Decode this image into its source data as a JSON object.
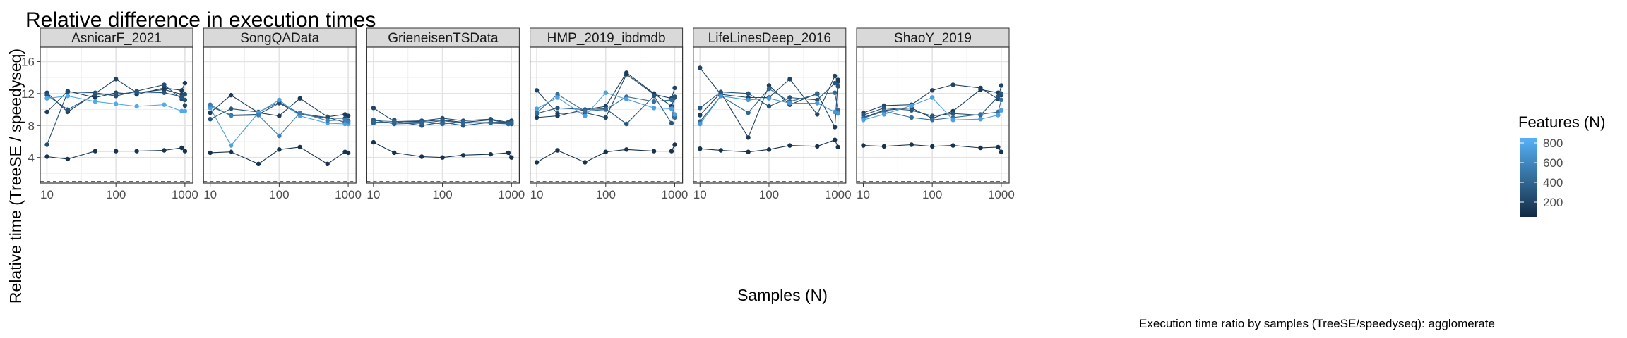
{
  "chart_data": {
    "type": "line",
    "title": "Relative difference in execution times",
    "xlabel": "Samples (N)",
    "ylabel": "Relative time (TreeSE / speedyseq)",
    "caption": "Execution time ratio by samples (TreeSE/speedyseq):  agglomerate",
    "x_scale": "log10",
    "xlim": [
      8,
      1300
    ],
    "ylim": [
      0.8,
      17.8
    ],
    "x_ticks": [
      10,
      100,
      1000
    ],
    "x_tick_labels": [
      "10",
      "100",
      "1000"
    ],
    "y_ticks": [
      4,
      8,
      12,
      16
    ],
    "y_tick_labels": [
      "4",
      "8",
      "12",
      "16"
    ],
    "reference_line": 1,
    "grid": true,
    "legend": {
      "title": "Features (N)",
      "placement": "right",
      "range": [
        50,
        850
      ],
      "ticks": [
        200,
        400,
        600,
        800
      ],
      "tick_labels": [
        "200",
        "400",
        "600",
        "800"
      ],
      "color_low": "#132b43",
      "color_high": "#56b1f7"
    },
    "panels": [
      {
        "name": "AsnicarF_2021",
        "series": [
          {
            "features": 100,
            "x": [
              10,
              20,
              50,
              100,
              200,
              500,
              900,
              1000
            ],
            "y": [
              4.1,
              3.8,
              4.8,
              4.8,
              4.8,
              4.9,
              5.2,
              4.8
            ]
          },
          {
            "features": 200,
            "x": [
              10,
              20,
              50,
              100,
              200,
              500,
              900,
              1000
            ],
            "y": [
              12.1,
              9.7,
              12.0,
              13.8,
              12.1,
              12.5,
              11.9,
              10.5
            ]
          },
          {
            "features": 150,
            "x": [
              10,
              20,
              50,
              100,
              200,
              500,
              900,
              1000
            ],
            "y": [
              9.7,
              12.3,
              11.5,
              12.1,
              11.9,
              12.7,
              12.4,
              13.3
            ]
          },
          {
            "features": 250,
            "x": [
              10,
              20,
              50,
              100,
              200,
              500,
              900,
              1000
            ],
            "y": [
              5.6,
              12.2,
              12.1,
              11.7,
              12.3,
              13.1,
              11.3,
              11.9
            ]
          },
          {
            "features": 300,
            "x": [
              10,
              20,
              50,
              100,
              200,
              500,
              900,
              1000
            ],
            "y": [
              11.8,
              10.0,
              11.9,
              11.9,
              12.2,
              12.1,
              11.6,
              11.2
            ]
          },
          {
            "features": 800,
            "x": [
              10,
              20,
              50,
              100,
              200,
              500,
              900,
              1000
            ],
            "y": [
              11.4,
              11.7,
              11.0,
              10.7,
              10.4,
              10.6,
              9.8,
              9.8
            ]
          }
        ]
      },
      {
        "name": "SongQAData",
        "series": [
          {
            "features": 100,
            "x": [
              10,
              20,
              50,
              100,
              200,
              500,
              900,
              1000
            ],
            "y": [
              4.6,
              4.7,
              3.2,
              5.0,
              5.3,
              3.2,
              4.7,
              4.6
            ]
          },
          {
            "features": 150,
            "x": [
              10,
              20,
              50,
              100,
              200,
              500,
              900,
              1000
            ],
            "y": [
              9.6,
              11.8,
              9.6,
              9.2,
              11.4,
              9.1,
              9.4,
              9.2
            ]
          },
          {
            "features": 300,
            "x": [
              10,
              20,
              50,
              100,
              200,
              500,
              900,
              1000
            ],
            "y": [
              8.8,
              10.1,
              9.7,
              10.9,
              9.5,
              9.0,
              8.4,
              8.6
            ]
          },
          {
            "features": 250,
            "x": [
              10,
              20,
              50,
              100,
              200,
              500,
              900,
              1000
            ],
            "y": [
              10.4,
              9.3,
              9.4,
              10.8,
              9.4,
              8.9,
              8.9,
              8.3
            ]
          },
          {
            "features": 750,
            "x": [
              10,
              20,
              50,
              100,
              200,
              500,
              900,
              1000
            ],
            "y": [
              10.2,
              5.5,
              9.6,
              11.2,
              9.2,
              8.3,
              8.2,
              8.2
            ]
          },
          {
            "features": 550,
            "x": [
              10,
              20,
              50,
              100,
              200,
              500,
              900,
              1000
            ],
            "y": [
              10.6,
              9.2,
              9.3,
              6.7,
              9.6,
              8.6,
              8.7,
              8.5
            ]
          }
        ]
      },
      {
        "name": "GrieneisenTSData",
        "series": [
          {
            "features": 100,
            "x": [
              10,
              20,
              50,
              100,
              200,
              500,
              900,
              1000
            ],
            "y": [
              5.9,
              4.6,
              4.1,
              4.0,
              4.3,
              4.4,
              4.6,
              4.0
            ]
          },
          {
            "features": 200,
            "x": [
              10,
              20,
              50,
              100,
              200,
              500,
              900,
              1000
            ],
            "y": [
              10.2,
              8.5,
              8.5,
              8.7,
              8.4,
              8.7,
              8.3,
              8.6
            ]
          },
          {
            "features": 250,
            "x": [
              10,
              20,
              50,
              100,
              200,
              500,
              900,
              1000
            ],
            "y": [
              8.6,
              8.7,
              8.6,
              8.9,
              8.6,
              8.8,
              8.4,
              8.3
            ]
          },
          {
            "features": 300,
            "x": [
              10,
              20,
              50,
              100,
              200,
              500,
              900,
              1000
            ],
            "y": [
              8.3,
              8.5,
              8.0,
              8.4,
              8.0,
              8.4,
              8.4,
              8.2
            ]
          },
          {
            "features": 350,
            "x": [
              10,
              20,
              50,
              100,
              200,
              500,
              900,
              1000
            ],
            "y": [
              8.7,
              8.2,
              8.3,
              8.6,
              8.3,
              8.4,
              8.2,
              8.4
            ]
          },
          {
            "features": 400,
            "x": [
              10,
              20,
              50,
              100,
              200,
              500,
              900,
              1000
            ],
            "y": [
              8.4,
              8.5,
              8.4,
              8.2,
              8.4,
              8.3,
              8.2,
              8.3
            ]
          }
        ]
      },
      {
        "name": "HMP_2019_ibdmdb",
        "series": [
          {
            "features": 100,
            "x": [
              10,
              20,
              50,
              100,
              200,
              500,
              900,
              1000
            ],
            "y": [
              3.4,
              4.9,
              3.4,
              4.7,
              5.0,
              4.8,
              4.8,
              5.6
            ]
          },
          {
            "features": 200,
            "x": [
              10,
              20,
              50,
              100,
              200,
              500,
              900,
              1000
            ],
            "y": [
              12.4,
              9.5,
              9.6,
              9.0,
              14.4,
              11.9,
              11.4,
              12.7
            ]
          },
          {
            "features": 150,
            "x": [
              10,
              20,
              50,
              100,
              200,
              500,
              900,
              1000
            ],
            "y": [
              9.0,
              9.2,
              10.0,
              10.4,
              14.6,
              12.0,
              10.4,
              11.5
            ]
          },
          {
            "features": 300,
            "x": [
              10,
              20,
              50,
              100,
              200,
              500,
              900,
              1000
            ],
            "y": [
              9.5,
              10.2,
              10.0,
              10.1,
              8.2,
              11.7,
              8.3,
              11.6
            ]
          },
          {
            "features": 450,
            "x": [
              10,
              20,
              50,
              100,
              200,
              500,
              900,
              1000
            ],
            "y": [
              9.6,
              11.9,
              9.8,
              10.0,
              11.6,
              11.0,
              11.2,
              9.0
            ]
          },
          {
            "features": 750,
            "x": [
              10,
              20,
              50,
              100,
              200,
              500,
              900,
              1000
            ],
            "y": [
              10.1,
              11.5,
              9.2,
              12.1,
              11.3,
              10.2,
              10.1,
              9.4
            ]
          }
        ]
      },
      {
        "name": "LifeLinesDeep_2016",
        "series": [
          {
            "features": 100,
            "x": [
              10,
              20,
              50,
              100,
              200,
              500,
              900,
              1000
            ],
            "y": [
              5.1,
              4.9,
              4.7,
              5.0,
              5.5,
              5.4,
              6.2,
              5.3
            ]
          },
          {
            "features": 200,
            "x": [
              10,
              20,
              50,
              100,
              200,
              500,
              900,
              1000
            ],
            "y": [
              15.2,
              11.9,
              11.5,
              11.5,
              13.8,
              9.4,
              14.2,
              13.5
            ]
          },
          {
            "features": 150,
            "x": [
              10,
              20,
              50,
              100,
              200,
              500,
              900,
              1000
            ],
            "y": [
              9.3,
              12.1,
              6.5,
              13.0,
              10.6,
              12.0,
              7.8,
              13.7
            ]
          },
          {
            "features": 300,
            "x": [
              10,
              20,
              50,
              100,
              200,
              500,
              900,
              1000
            ],
            "y": [
              10.2,
              12.2,
              12.0,
              10.4,
              11.5,
              11.2,
              13.3,
              12.9
            ]
          },
          {
            "features": 400,
            "x": [
              10,
              20,
              50,
              100,
              200,
              500,
              900,
              1000
            ],
            "y": [
              8.5,
              11.7,
              9.6,
              12.6,
              11.0,
              11.9,
              12.1,
              9.9
            ]
          },
          {
            "features": 700,
            "x": [
              10,
              20,
              50,
              100,
              200,
              500,
              900,
              1000
            ],
            "y": [
              8.2,
              11.7,
              11.2,
              11.4,
              10.8,
              10.8,
              9.7,
              9.5
            ]
          }
        ]
      },
      {
        "name": "ShaoY_2019",
        "series": [
          {
            "features": 100,
            "x": [
              10,
              20,
              50,
              100,
              200,
              500,
              900,
              1000
            ],
            "y": [
              5.5,
              5.4,
              5.6,
              5.4,
              5.5,
              5.2,
              5.3,
              4.7
            ]
          },
          {
            "features": 200,
            "x": [
              10,
              20,
              50,
              100,
              200,
              500,
              900,
              1000
            ],
            "y": [
              9.6,
              10.5,
              10.6,
              12.4,
              13.1,
              12.7,
              11.3,
              13.0
            ]
          },
          {
            "features": 150,
            "x": [
              10,
              20,
              50,
              100,
              200,
              500,
              900,
              1000
            ],
            "y": [
              9.0,
              9.9,
              10.2,
              8.9,
              9.8,
              12.5,
              12.1,
              11.8
            ]
          },
          {
            "features": 300,
            "x": [
              10,
              20,
              50,
              100,
              200,
              500,
              900,
              1000
            ],
            "y": [
              9.3,
              10.2,
              9.9,
              9.2,
              9.5,
              9.3,
              11.6,
              12.0
            ]
          },
          {
            "features": 450,
            "x": [
              10,
              20,
              50,
              100,
              200,
              500,
              900,
              1000
            ],
            "y": [
              8.9,
              9.8,
              9.0,
              8.7,
              9.0,
              9.4,
              9.7,
              11.2
            ]
          },
          {
            "features": 750,
            "x": [
              10,
              20,
              50,
              100,
              200,
              500,
              900,
              1000
            ],
            "y": [
              8.7,
              9.4,
              10.5,
              11.5,
              8.7,
              8.8,
              9.3,
              9.9
            ]
          }
        ]
      }
    ]
  }
}
